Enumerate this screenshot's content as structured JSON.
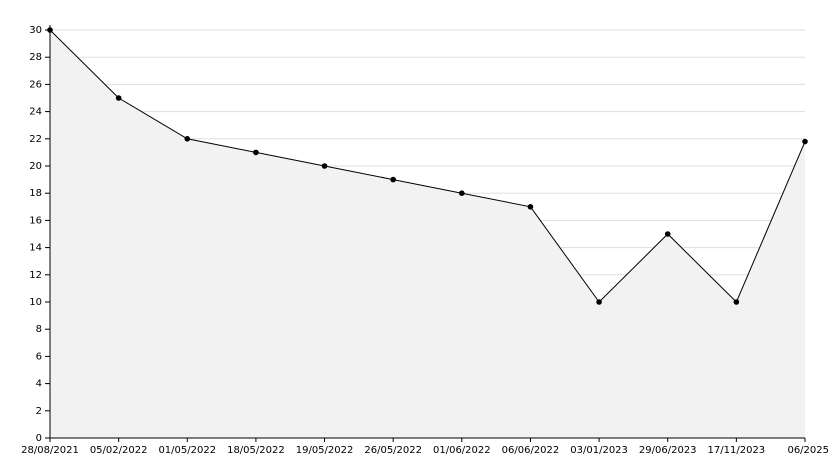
{
  "chart_data": {
    "type": "area",
    "categories": [
      "28/08/2021",
      "05/02/2022",
      "01/05/2022",
      "18/05/2022",
      "19/05/2022",
      "26/05/2022",
      "01/06/2022",
      "06/06/2022",
      "03/01/2023",
      "29/06/2023",
      "17/11/2023",
      "06/2025"
    ],
    "values": [
      30,
      25,
      22,
      21,
      20,
      19,
      18,
      17,
      10,
      15,
      10,
      21.8
    ],
    "color": "#000000",
    "fill_color": "#f2f2f2",
    "ylim": [
      0,
      30
    ],
    "yticks": [
      0,
      2,
      4,
      6,
      8,
      10,
      12,
      14,
      16,
      18,
      20,
      22,
      24,
      26,
      28,
      30
    ],
    "grid": true
  }
}
